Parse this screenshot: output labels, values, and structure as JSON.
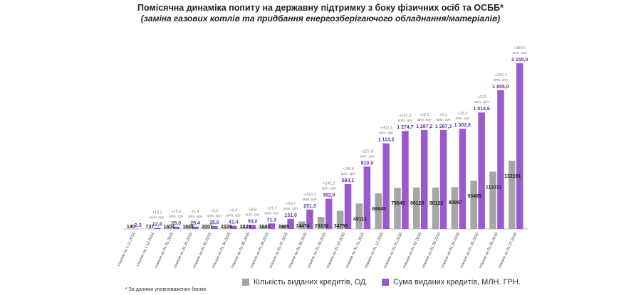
{
  "title": "Помісячна динаміка попиту на державну підтримку з боку фізичних осіб та ОСББ*",
  "subtitle": "(заміна газових котлів  та  придбання енергозберігаючого обладнання/матеріалів)",
  "footnote": "* За даними уповноважених банків",
  "colors": {
    "count": "#a6a6a6",
    "amount": "#9b59d0",
    "amount_text": "#6b2fa3",
    "delta_text": "#7f7f7f"
  },
  "chart_data": {
    "type": "bar",
    "title": "Помісячна динаміка попиту на державну підтримку з боку фізичних осіб та ОСББ*",
    "categories": [
      "станом на 1.11.2014",
      "станом на 1.12.2014",
      "станом на 01.01.2015",
      "станом на 01.02.2015",
      "станом на 01.03.2015",
      "станом на 01.04.2015",
      "станом на 01.05.2015",
      "станом на 01.06.2015",
      "станом на 01.07.2015",
      "станом на 01.08.2015",
      "станом на 01.09.2015",
      "станом на 01.10.2015",
      "станом на 01.11.2015",
      "станом на 01.12.2015",
      "станом на 01.01.2016",
      "станом на 01.02.2016",
      "станом на 01.03.2016",
      "станом на 01.04.2016",
      "станом на 01.05.2016",
      "станом на 01.06.2016",
      "станом на 01.07.2016"
    ],
    "series": [
      {
        "name": "Кількість виданих кредитів, ОД.",
        "values": [
          140,
          737,
          1604,
          1688,
          2007,
          2339,
          2838,
          3984,
          7405,
          14474,
          23132,
          34756,
          49113,
          68845,
          79545,
          80120,
          80122,
          80997,
          93489,
          111011,
          132191
        ],
        "labels": [
          "140",
          "737",
          "1604",
          "1688",
          "2007",
          "2339",
          "2838",
          "3984",
          "7405",
          "14474",
          "23132",
          "34756",
          "49113",
          "68845",
          "79545",
          "80120",
          "80122",
          "80997",
          "93489",
          "111011",
          "132191"
        ]
      },
      {
        "name": "Сума виданих кредитів, МЛН. ГРН.",
        "values": [
          2.3,
          12.4,
          28.0,
          29.4,
          35.0,
          41.4,
          50.2,
          71.3,
          131.0,
          251.3,
          392.5,
          583.1,
          810.9,
          1113.2,
          1274.7,
          1287.2,
          1287.3,
          1302.6,
          1514.6,
          1805.0,
          2155.0
        ],
        "labels": [
          "2,3",
          "12,4",
          "28,0",
          "29,4",
          "35,0",
          "41,4",
          "50,2",
          "71,3",
          "131,0",
          "251,3",
          "392,5",
          "583,1",
          "810,9",
          "1 113,2",
          "1 274,7",
          "1 287,2",
          "1 287,3",
          "1 302,6",
          "1 514,6",
          "1 805,0",
          "2 155,0"
        ]
      }
    ],
    "increments": [
      "",
      "+10,1",
      "+15,6",
      "+1,4",
      "+5,6",
      "+6,4",
      "+8,8",
      "+21,1",
      "+59,7",
      "+120,3",
      "+141,2",
      "+190,6",
      "+227,8",
      "+302,3",
      "+161,5",
      "+12,5",
      "+0,1",
      "+15,3",
      "+212",
      "+290,4",
      "+350,0"
    ],
    "increment_unit": "млн. грн",
    "legend_position": "bottom"
  }
}
